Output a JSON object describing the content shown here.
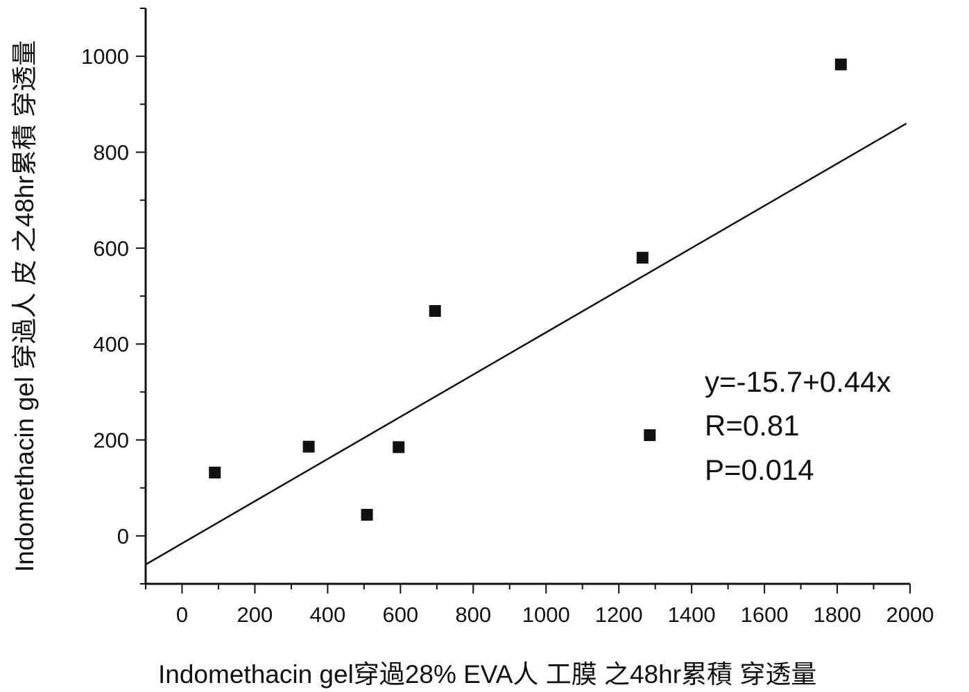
{
  "chart_data": {
    "type": "scatter",
    "title": "",
    "xlabel": "Indomethacin gel穿過28% EVA人 工膜 之48hr累積 穿透量",
    "ylabel": "Indomethacin gel 穿過人 皮 之48hr累積 穿透量",
    "xlim": [
      -100,
      2000
    ],
    "ylim": [
      -100,
      1100
    ],
    "xticks": [
      0,
      200,
      400,
      600,
      800,
      1000,
      1200,
      1400,
      1600,
      1800,
      2000
    ],
    "yticks": [
      0,
      200,
      400,
      600,
      800,
      1000
    ],
    "x_minor_step": 100,
    "y_minor_step": 100,
    "grid": false,
    "legend": "none",
    "marker": "square",
    "colors": {
      "ink": "#111111",
      "background": "#ffffff"
    },
    "series": [
      {
        "points": [
          {
            "x": 90,
            "y": 132
          },
          {
            "x": 348,
            "y": 186
          },
          {
            "x": 508,
            "y": 44
          },
          {
            "x": 595,
            "y": 185
          },
          {
            "x": 695,
            "y": 469
          },
          {
            "x": 1265,
            "y": 580
          },
          {
            "x": 1285,
            "y": 210
          },
          {
            "x": 1810,
            "y": 983
          }
        ]
      }
    ],
    "fit": {
      "intercept": -15.7,
      "slope": 0.44,
      "x_range": [
        -100,
        1990
      ]
    },
    "annotations": [
      "y=-15.7+0.44x",
      "R=0.81",
      "P=0.014"
    ]
  }
}
